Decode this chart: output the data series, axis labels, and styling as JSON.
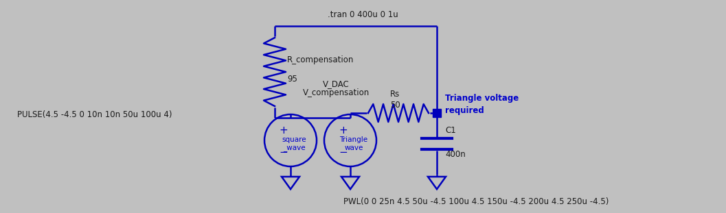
{
  "bg_color": "#c0c0c0",
  "wire_color": "#0000bb",
  "text_color_blue": "#0000cc",
  "text_color_dark": "#1a1a1a",
  "fig_width": 10.37,
  "fig_height": 2.83,
  "tran_label": ".tran 0 400u 0 1u",
  "r_comp_label": "R_compensation",
  "r_comp_val": "95",
  "rs_label": "Rs",
  "rs_val": "50",
  "vdac_label": "V_DAC",
  "vcomp_label": "V_compensation",
  "pulse_label": "PULSE(4.5 -4.5 0 10n 10n 50u 100u 4)",
  "c1_label": "C1",
  "c1_val": "400n",
  "triangle_label1": "Triangle voltage",
  "triangle_label2": "required",
  "pwl_label": "PWL(0 0 25n 4.5 50u -4.5 100u 4.5 150u -4.5 200u 4.5 250u -4.5)",
  "square_label": "square\n_wave",
  "triangle_wave_label": "Triangle\nwave"
}
